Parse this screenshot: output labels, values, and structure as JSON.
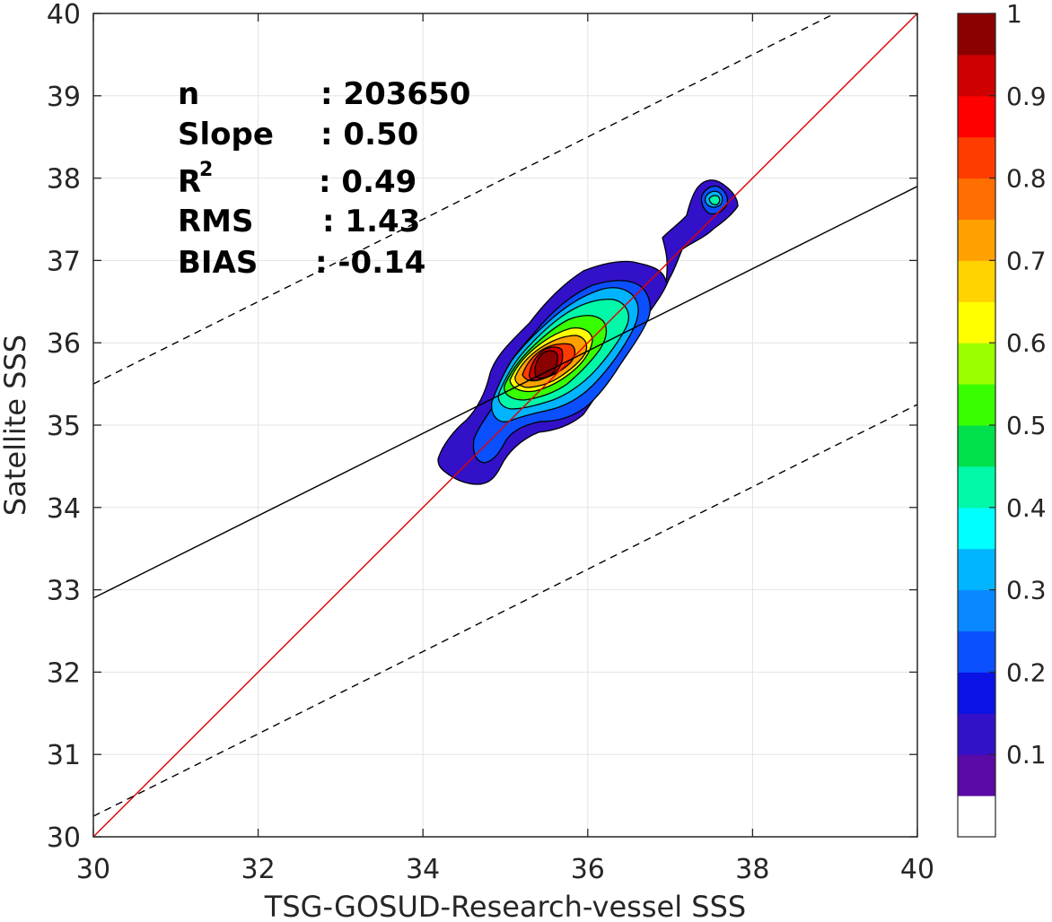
{
  "chart_data": {
    "type": "contour",
    "xlabel": "TSG-GOSUD-Research-vessel SSS",
    "ylabel": "Satellite SSS",
    "xlim": [
      30,
      40
    ],
    "ylim": [
      30,
      40
    ],
    "x_ticks": [
      "30",
      "32",
      "34",
      "36",
      "38",
      "40"
    ],
    "y_ticks": [
      "30",
      "31",
      "32",
      "33",
      "34",
      "35",
      "36",
      "37",
      "38",
      "39",
      "40"
    ],
    "grid": true,
    "stats": {
      "n_label": "n",
      "n_value": ": 203650",
      "slope_label": "Slope",
      "slope_value": ": 0.50",
      "r2_label": "R",
      "r2_sup": "2",
      "r2_value": ": 0.49",
      "rms_label": "RMS",
      "rms_value": ": 1.43",
      "bias_label": "BIAS",
      "bias_value": ": -0.14"
    },
    "lines": [
      {
        "name": "1:1",
        "style": "solid",
        "color": "#e00000",
        "slope": 1.0,
        "intercept": 0.0
      },
      {
        "name": "regression",
        "style": "solid",
        "color": "#000000",
        "slope": 0.5,
        "intercept": 17.9
      },
      {
        "name": "upper bound",
        "style": "dashed",
        "color": "#000000",
        "slope": 0.5,
        "intercept": 20.5
      },
      {
        "name": "lower bound",
        "style": "dashed",
        "color": "#000000",
        "slope": 0.5,
        "intercept": 15.25
      }
    ],
    "density_core": {
      "x": 35.55,
      "y": 35.75
    },
    "secondary_peak": {
      "x": 37.5,
      "y": 37.75
    },
    "colorbar": {
      "range": [
        0,
        1
      ],
      "tick_labels": [
        "0.1",
        "0.2",
        "0.3",
        "0.4",
        "0.5",
        "0.6",
        "0.7",
        "0.8",
        "0.9",
        "1"
      ],
      "colors": [
        "#ffffff",
        "#5a0aa6",
        "#3311c8",
        "#0a12e6",
        "#0a50ff",
        "#0a88ff",
        "#00b4ff",
        "#00ffff",
        "#00f8a8",
        "#00e04a",
        "#38ff00",
        "#9cff00",
        "#ffff00",
        "#ffd200",
        "#ffa200",
        "#ff6e00",
        "#ff3c00",
        "#ff0000",
        "#cf0000",
        "#8b0000"
      ]
    }
  }
}
